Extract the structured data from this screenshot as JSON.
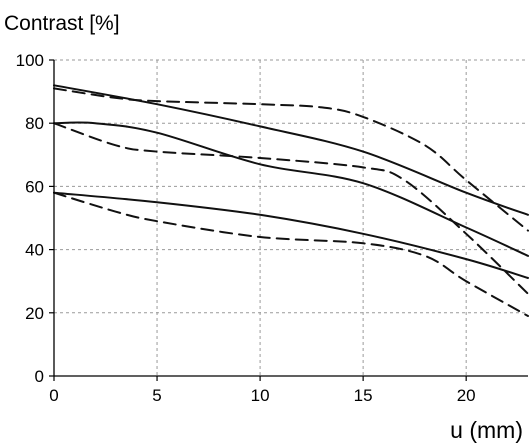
{
  "chart_data": {
    "type": "line",
    "ylabel": "Contrast [%]",
    "xlabel": "u (mm)",
    "xlim": [
      0,
      23
    ],
    "ylim": [
      0,
      100
    ],
    "xticks": [
      0,
      5,
      10,
      15,
      20
    ],
    "yticks": [
      0,
      20,
      40,
      60,
      80,
      100
    ],
    "grid": true,
    "series": [
      {
        "style": "solid",
        "x": [
          0,
          5,
          10,
          15,
          20,
          23
        ],
        "y": [
          92,
          86,
          79,
          71,
          58,
          51
        ]
      },
      {
        "style": "dashed",
        "x": [
          0,
          3,
          5,
          10,
          13,
          15,
          18,
          20,
          23
        ],
        "y": [
          91,
          88,
          87,
          86,
          85,
          82,
          73,
          62,
          46
        ]
      },
      {
        "style": "solid",
        "x": [
          0,
          2,
          5,
          10,
          15,
          20,
          23
        ],
        "y": [
          80,
          80,
          77,
          67,
          61,
          47,
          38
        ]
      },
      {
        "style": "dashed",
        "x": [
          0,
          3,
          5,
          10,
          15,
          17,
          20,
          23
        ],
        "y": [
          80,
          73,
          71,
          69,
          66,
          62,
          45,
          26
        ]
      },
      {
        "style": "solid",
        "x": [
          0,
          5,
          10,
          15,
          20,
          23
        ],
        "y": [
          58,
          55,
          51,
          45,
          37,
          31
        ]
      },
      {
        "style": "dashed",
        "x": [
          0,
          3,
          5,
          10,
          15,
          18,
          20,
          23
        ],
        "y": [
          58,
          52,
          49,
          44,
          42,
          38,
          30,
          19
        ]
      }
    ]
  }
}
